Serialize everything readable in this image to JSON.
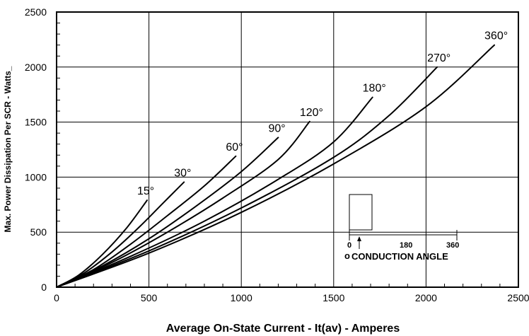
{
  "chart_data": {
    "type": "line",
    "xlabel": "Average On-State Current - It(av) - Amperes",
    "ylabel": "Max. Power Dissipation Per SCR - Watts_",
    "xlim": [
      0,
      2500
    ],
    "ylim": [
      0,
      2500
    ],
    "xticks": [
      "0",
      "500",
      "1000",
      "1500",
      "2000",
      "2500"
    ],
    "yticks": [
      "0",
      "500",
      "1000",
      "1500",
      "2000",
      "2500"
    ],
    "grid": true,
    "series": [
      {
        "name": "15°",
        "x": [
          0,
          120,
          250,
          380,
          490
        ],
        "y": [
          0,
          110,
          300,
          540,
          790
        ]
      },
      {
        "name": "30°",
        "x": [
          0,
          150,
          300,
          450,
          580,
          690
        ],
        "y": [
          0,
          130,
          320,
          550,
          770,
          955
        ]
      },
      {
        "name": "60°",
        "x": [
          0,
          200,
          400,
          600,
          800,
          970
        ],
        "y": [
          0,
          160,
          390,
          650,
          920,
          1190
        ]
      },
      {
        "name": "90°",
        "x": [
          0,
          250,
          500,
          750,
          1000,
          1200
        ],
        "y": [
          0,
          195,
          440,
          730,
          1050,
          1360
        ]
      },
      {
        "name": "120°",
        "x": [
          0,
          300,
          600,
          900,
          1200,
          1370
        ],
        "y": [
          0,
          225,
          500,
          810,
          1160,
          1505
        ]
      },
      {
        "name": "180°",
        "x": [
          0,
          400,
          800,
          1200,
          1500,
          1710
        ],
        "y": [
          0,
          280,
          600,
          980,
          1320,
          1725
        ]
      },
      {
        "name": "270°",
        "x": [
          0,
          500,
          1000,
          1500,
          1800,
          2060
        ],
        "y": [
          0,
          330,
          720,
          1180,
          1560,
          2000
        ]
      },
      {
        "name": "360°",
        "x": [
          0,
          500,
          1000,
          1500,
          2000,
          2370
        ],
        "y": [
          0,
          310,
          680,
          1120,
          1640,
          2200
        ]
      }
    ],
    "inset": {
      "ticks": [
        "0",
        "180",
        "360"
      ],
      "label": "CONDUCTION ANGLE",
      "marker": "o"
    }
  }
}
